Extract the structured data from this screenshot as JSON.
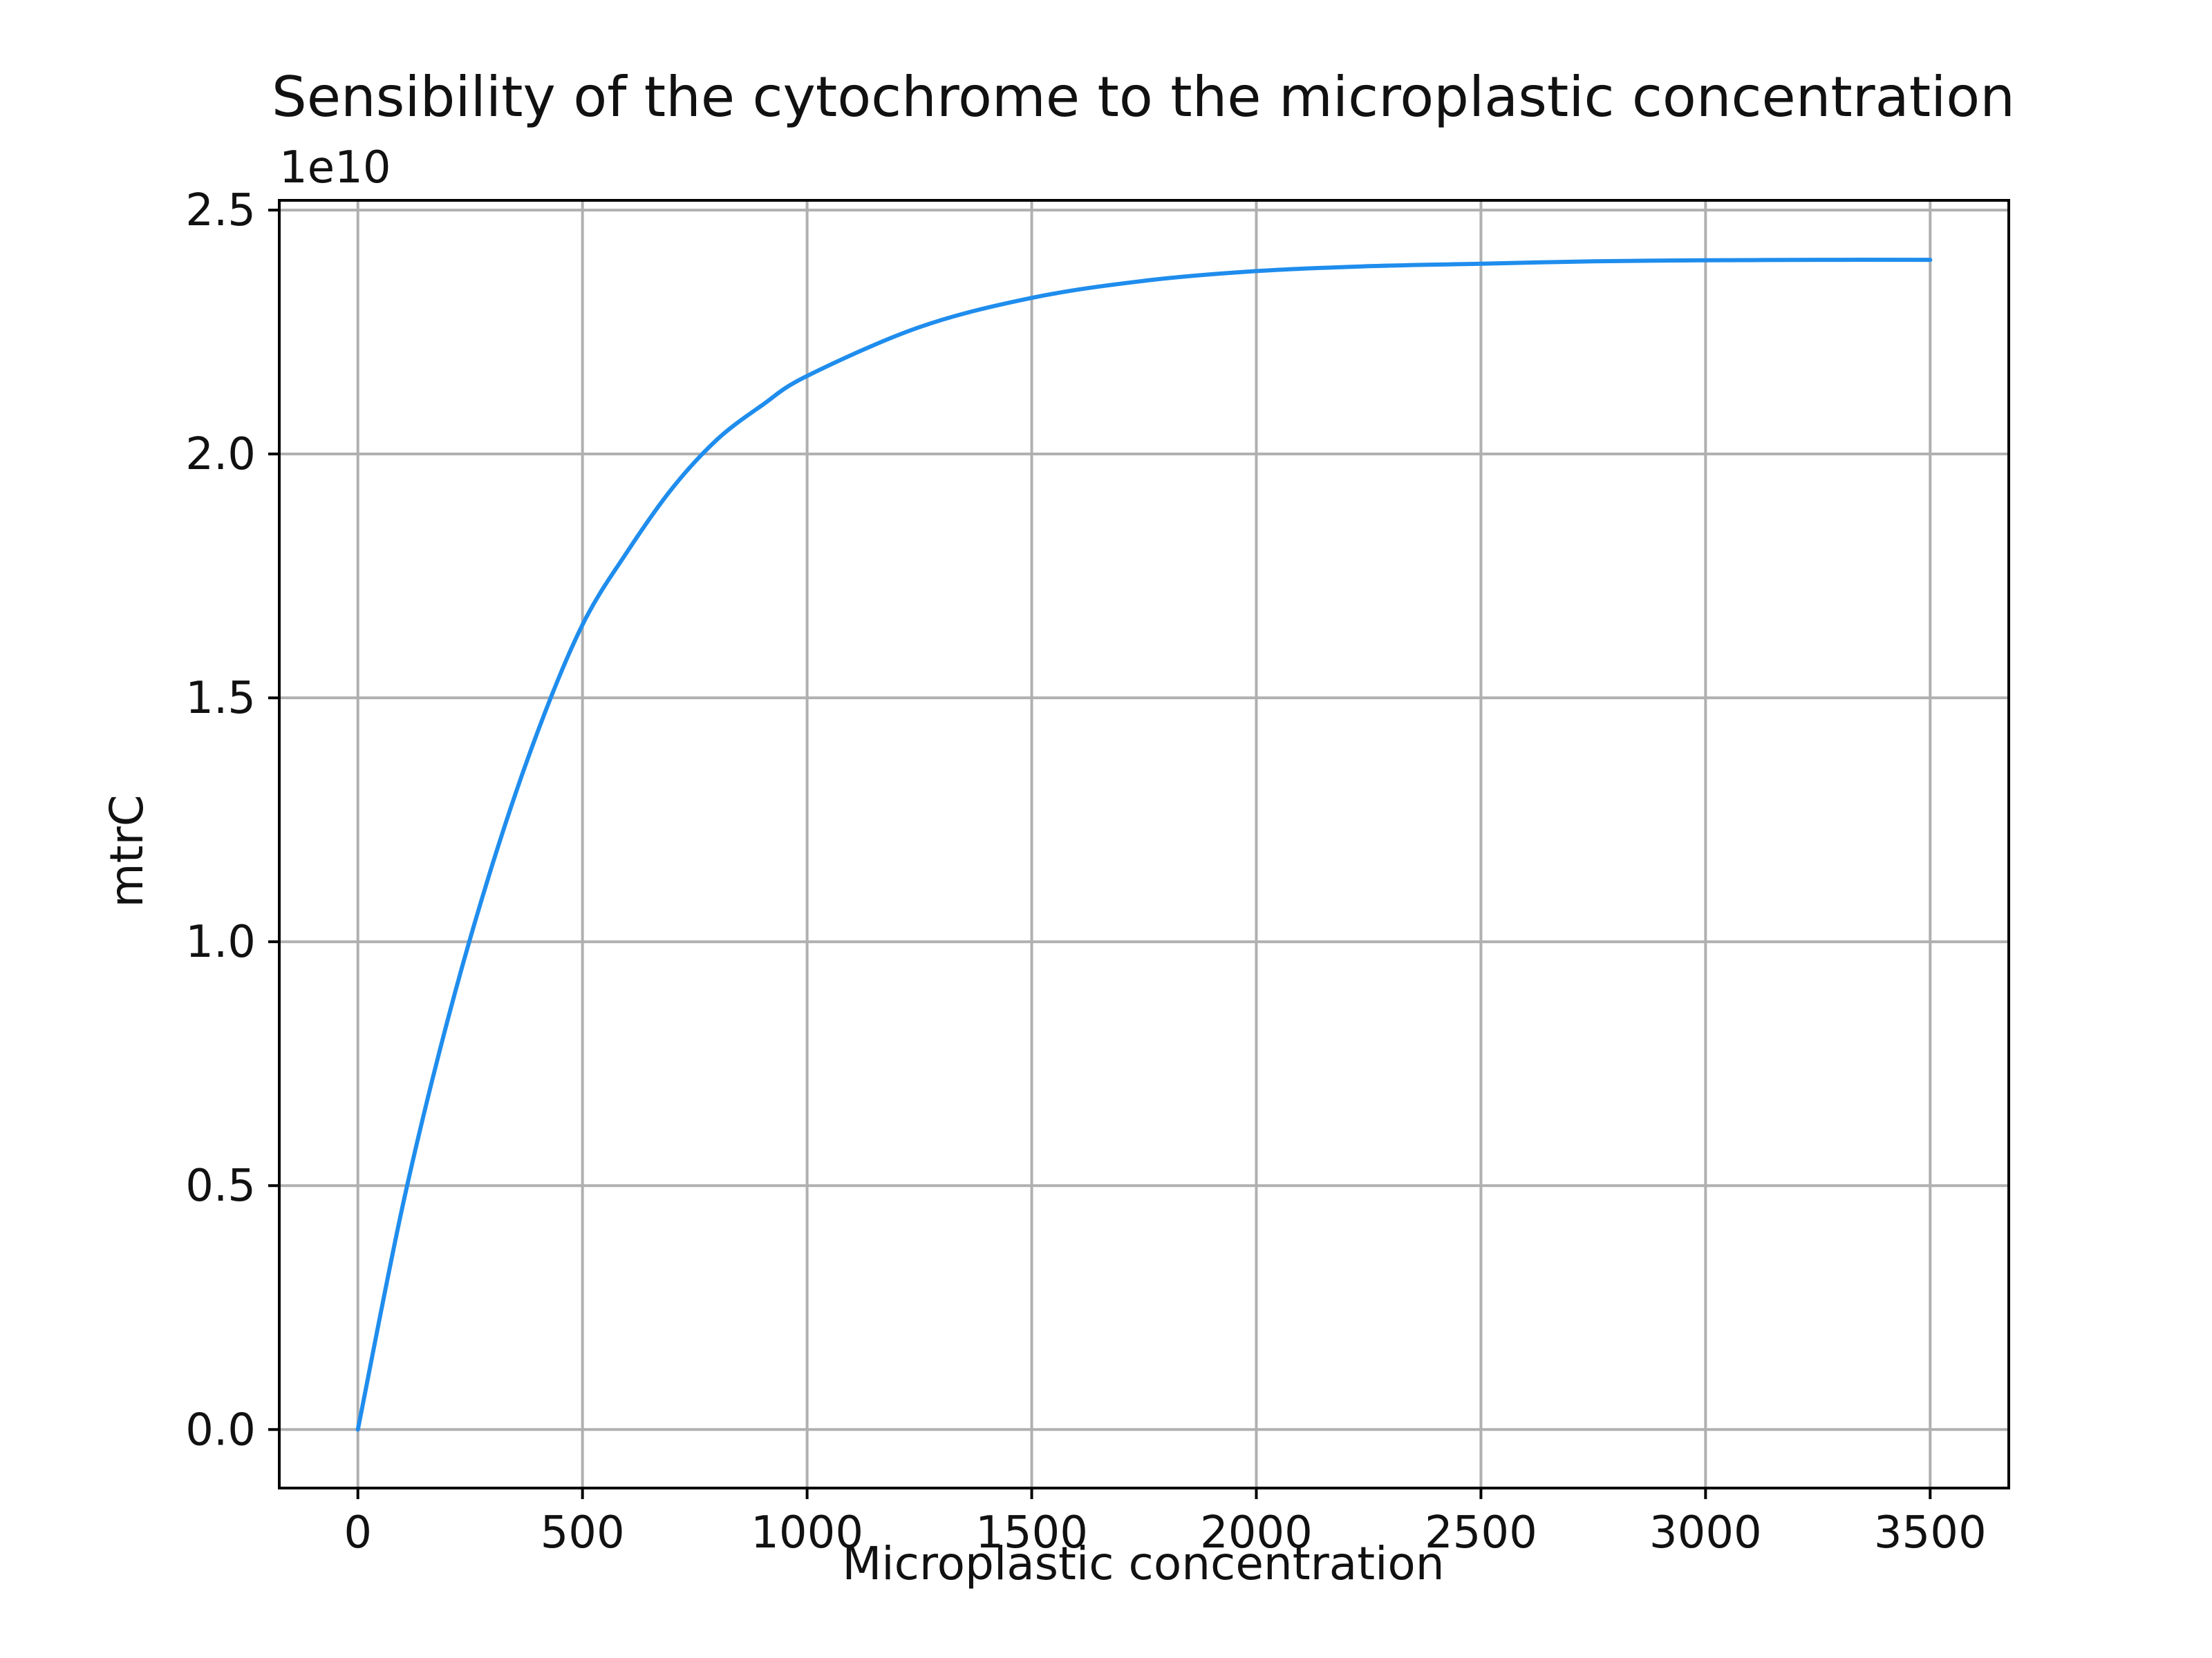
{
  "chart_data": {
    "type": "line",
    "title": "Sensibility of the cytochrome to the microplastic concentration",
    "xlabel": "Microplastic concentration",
    "ylabel": "mtrC",
    "y_offset_text": "1e10",
    "y_multiplier": 10000000000,
    "xlim": [
      -175,
      3675
    ],
    "ylim": [
      -0.12,
      2.52
    ],
    "x_ticks": [
      0,
      500,
      1000,
      1500,
      2000,
      2500,
      3000,
      3500
    ],
    "y_ticks": [
      0.0,
      0.5,
      1.0,
      1.5,
      2.0,
      2.5
    ],
    "x_tick_labels": [
      "0",
      "500",
      "1000",
      "1500",
      "2000",
      "2500",
      "3000",
      "3500"
    ],
    "y_tick_labels": [
      "0.0",
      "0.5",
      "1.0",
      "1.5",
      "2.0",
      "2.5"
    ],
    "grid": true,
    "series": [
      {
        "color": "#1f8ded",
        "x": [
          0,
          100,
          200,
          300,
          400,
          500,
          600,
          700,
          800,
          900,
          1000,
          1250,
          1500,
          1750,
          2000,
          2250,
          2500,
          2750,
          3000,
          3250,
          3500
        ],
        "y": [
          0.0,
          0.46,
          0.84,
          1.16,
          1.43,
          1.65,
          1.8,
          1.93,
          2.03,
          2.1,
          2.16,
          2.26,
          2.32,
          2.355,
          2.375,
          2.385,
          2.39,
          2.395,
          2.397,
          2.398,
          2.398
        ]
      }
    ]
  },
  "colors": {
    "line": "#1f8ded",
    "grid": "#b0b0b0",
    "axes": "#000000"
  }
}
